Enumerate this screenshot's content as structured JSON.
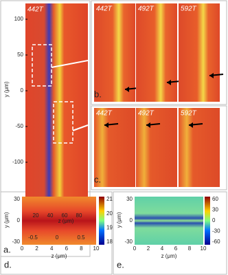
{
  "panels": {
    "a": {
      "label": "a.",
      "field_label": "442T",
      "y_axis_label": "y (μm)",
      "x_axis_label": "z (μm)",
      "yticks": [
        "100",
        "50",
        "0",
        "-50",
        "-100"
      ],
      "xticks": [
        "20",
        "40",
        "60",
        "80"
      ],
      "colorbar_ticks": [
        "-0.5",
        "0",
        "0.5"
      ]
    },
    "b": {
      "label": "b.",
      "fields": [
        "442T",
        "492T",
        "592T"
      ]
    },
    "c": {
      "label": "c.",
      "fields": [
        "442T",
        "492T",
        "592T"
      ]
    },
    "d": {
      "label": "d.",
      "y_axis_label": "y (μm)",
      "x_axis_label": "z (μm)",
      "yticks": [
        "30",
        "0",
        "-30"
      ],
      "xticks": [
        "0",
        "2",
        "4",
        "6",
        "8",
        "10"
      ],
      "colorbar_ticks": [
        "21",
        "20",
        "19",
        "18"
      ]
    },
    "e": {
      "label": "e.",
      "y_axis_label": "y (μm)",
      "x_axis_label": "z (μm)",
      "yticks": [
        "30",
        "0",
        "-30"
      ],
      "xticks": [
        "0",
        "2",
        "4",
        "6",
        "8",
        "10"
      ],
      "colorbar_ticks": [
        "60",
        "30",
        "0",
        "-30",
        "-60"
      ]
    }
  }
}
